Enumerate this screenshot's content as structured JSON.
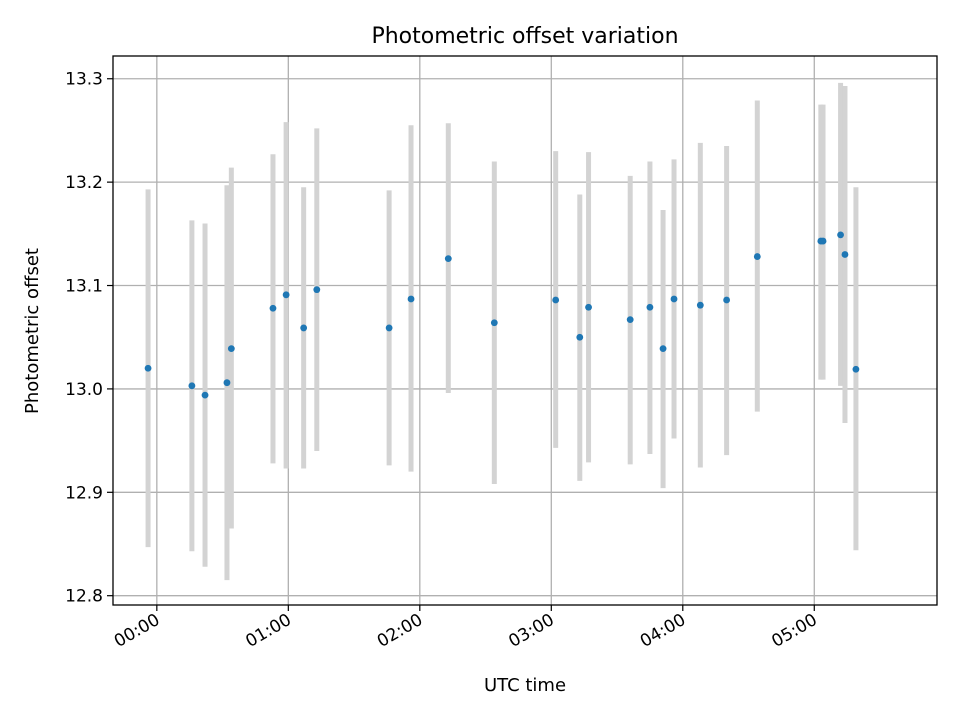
{
  "chart_data": {
    "type": "scatter",
    "title": "Photometric offset variation",
    "xlabel": "UTC time",
    "ylabel": "Photometric offset",
    "x_ticks": [
      "00:00",
      "01:00",
      "02:00",
      "03:00",
      "04:00",
      "05:00"
    ],
    "y_ticks": [
      "12.8",
      "12.9",
      "13.0",
      "13.1",
      "13.2",
      "13.3"
    ],
    "xlim": [
      "-00:20",
      "05:56"
    ],
    "ylim": [
      12.791,
      13.322
    ],
    "grid": true,
    "error_bar_color": "#d3d3d3",
    "marker_color": "#1f77b4",
    "points": [
      {
        "x": "-00:04",
        "y": 13.02,
        "lo": 12.847,
        "hi": 13.193
      },
      {
        "x": "00:16",
        "y": 13.003,
        "lo": 12.843,
        "hi": 13.163
      },
      {
        "x": "00:22",
        "y": 12.994,
        "lo": 12.828,
        "hi": 13.16
      },
      {
        "x": "00:32",
        "y": 13.006,
        "lo": 12.815,
        "hi": 13.197
      },
      {
        "x": "00:34",
        "y": 13.039,
        "lo": 12.865,
        "hi": 13.214
      },
      {
        "x": "00:53",
        "y": 13.078,
        "lo": 12.928,
        "hi": 13.227
      },
      {
        "x": "00:59",
        "y": 13.091,
        "lo": 12.923,
        "hi": 13.258
      },
      {
        "x": "01:07",
        "y": 13.059,
        "lo": 12.923,
        "hi": 13.195
      },
      {
        "x": "01:13",
        "y": 13.096,
        "lo": 12.94,
        "hi": 13.252
      },
      {
        "x": "01:46",
        "y": 13.059,
        "lo": 12.926,
        "hi": 13.192
      },
      {
        "x": "01:56",
        "y": 13.087,
        "lo": 12.92,
        "hi": 13.255
      },
      {
        "x": "02:13",
        "y": 13.126,
        "lo": 12.996,
        "hi": 13.257
      },
      {
        "x": "02:34",
        "y": 13.064,
        "lo": 12.908,
        "hi": 13.22
      },
      {
        "x": "03:02",
        "y": 13.086,
        "lo": 12.943,
        "hi": 13.23
      },
      {
        "x": "03:13",
        "y": 13.05,
        "lo": 12.911,
        "hi": 13.188
      },
      {
        "x": "03:17",
        "y": 13.079,
        "lo": 12.929,
        "hi": 13.229
      },
      {
        "x": "03:36",
        "y": 13.067,
        "lo": 12.927,
        "hi": 13.206
      },
      {
        "x": "03:45",
        "y": 13.079,
        "lo": 12.937,
        "hi": 13.22
      },
      {
        "x": "03:51",
        "y": 13.039,
        "lo": 12.904,
        "hi": 13.173
      },
      {
        "x": "03:56",
        "y": 13.087,
        "lo": 12.952,
        "hi": 13.222
      },
      {
        "x": "04:08",
        "y": 13.081,
        "lo": 12.924,
        "hi": 13.238
      },
      {
        "x": "04:20",
        "y": 13.086,
        "lo": 12.936,
        "hi": 13.235
      },
      {
        "x": "04:34",
        "y": 13.128,
        "lo": 12.978,
        "hi": 13.279
      },
      {
        "x": "05:03",
        "y": 13.143,
        "lo": 13.009,
        "hi": 13.275
      },
      {
        "x": "05:04",
        "y": 13.143,
        "lo": 13.009,
        "hi": 13.275
      },
      {
        "x": "05:12",
        "y": 13.149,
        "lo": 13.003,
        "hi": 13.296
      },
      {
        "x": "05:14",
        "y": 13.13,
        "lo": 12.967,
        "hi": 13.293
      },
      {
        "x": "05:19",
        "y": 13.019,
        "lo": 12.844,
        "hi": 13.195
      }
    ]
  }
}
